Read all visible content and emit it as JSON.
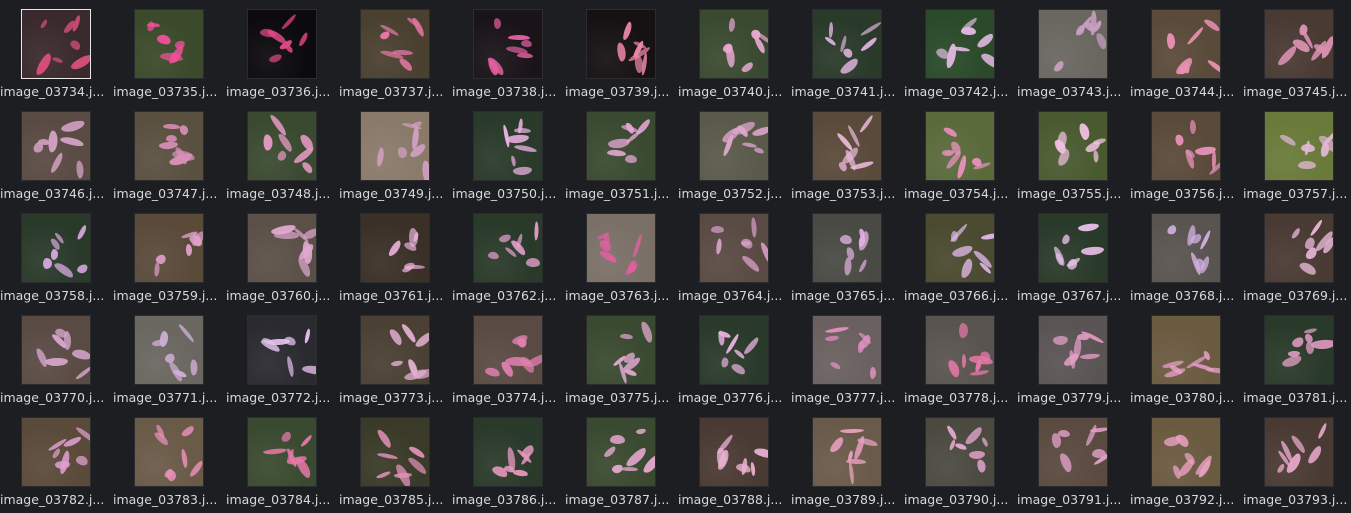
{
  "file_browser": {
    "selected_index": 0,
    "thumbnail_subject": "flower-photo",
    "colors": {
      "background": "#1c1e22",
      "label": "#d6d8dc",
      "selection_border": "#e8e8e8"
    },
    "files": [
      {
        "name": "image_03734.j...",
        "bg": "#3a2a2e",
        "petal": "#d9507a"
      },
      {
        "name": "image_03735.j...",
        "bg": "#3b4a2a",
        "petal": "#f0509a"
      },
      {
        "name": "image_03736.j...",
        "bg": "#0c0a0c",
        "petal": "#e04a8a"
      },
      {
        "name": "image_03737.j...",
        "bg": "#4a4030",
        "petal": "#e878a8"
      },
      {
        "name": "image_03738.j...",
        "bg": "#1a1418",
        "petal": "#e060a0"
      },
      {
        "name": "image_03739.j...",
        "bg": "#161214",
        "petal": "#f08aa8"
      },
      {
        "name": "image_03740.j...",
        "bg": "#3a4a30",
        "petal": "#e8a8d0"
      },
      {
        "name": "image_03741.j...",
        "bg": "#2a3a2a",
        "petal": "#d8b0d8"
      },
      {
        "name": "image_03742.j...",
        "bg": "#2a4a2a",
        "petal": "#e0b8e0"
      },
      {
        "name": "image_03743.j...",
        "bg": "#6a6660",
        "petal": "#c8a0c0"
      },
      {
        "name": "image_03744.j...",
        "bg": "#5a4a3a",
        "petal": "#e890b0"
      },
      {
        "name": "image_03745.j...",
        "bg": "#4a3a34",
        "petal": "#d890b0"
      },
      {
        "name": "image_03746.j...",
        "bg": "#5a4a44",
        "petal": "#d0a0c0"
      },
      {
        "name": "image_03747.j...",
        "bg": "#5a5040",
        "petal": "#d890b8"
      },
      {
        "name": "image_03748.j...",
        "bg": "#3a4a30",
        "petal": "#e098c0"
      },
      {
        "name": "image_03749.j...",
        "bg": "#8a7a6a",
        "petal": "#d0a0c0"
      },
      {
        "name": "image_03750.j...",
        "bg": "#2a3a2a",
        "petal": "#e8b0e0"
      },
      {
        "name": "image_03751.j...",
        "bg": "#3a4a30",
        "petal": "#e8a8d8"
      },
      {
        "name": "image_03752.j...",
        "bg": "#5a5a4a",
        "petal": "#e0a8d0"
      },
      {
        "name": "image_03753.j...",
        "bg": "#5a4a3a",
        "petal": "#e8b8d8"
      },
      {
        "name": "image_03754.j...",
        "bg": "#5a6a3a",
        "petal": "#e890c0"
      },
      {
        "name": "image_03755.j...",
        "bg": "#4a5a30",
        "petal": "#f0c0e0"
      },
      {
        "name": "image_03756.j...",
        "bg": "#5a4a3a",
        "petal": "#e890b8"
      },
      {
        "name": "image_03757.j...",
        "bg": "#6a7a3a",
        "petal": "#e0b8d8"
      },
      {
        "name": "image_03758.j...",
        "bg": "#2a3a2a",
        "petal": "#d8a8e0"
      },
      {
        "name": "image_03759.j...",
        "bg": "#5a4a3a",
        "petal": "#e0a0c8"
      },
      {
        "name": "image_03760.j...",
        "bg": "#5a5048",
        "petal": "#e0a8d0"
      },
      {
        "name": "image_03761.j...",
        "bg": "#3a3028",
        "petal": "#e8b0d8"
      },
      {
        "name": "image_03762.j...",
        "bg": "#2a3a2a",
        "petal": "#e8a0d0"
      },
      {
        "name": "image_03763.j...",
        "bg": "#7a7068",
        "petal": "#e060a0"
      },
      {
        "name": "image_03764.j...",
        "bg": "#5a4a44",
        "petal": "#d8a0c8"
      },
      {
        "name": "image_03765.j...",
        "bg": "#4a4a44",
        "petal": "#e0b0e0"
      },
      {
        "name": "image_03766.j...",
        "bg": "#4a4a30",
        "petal": "#e0b8e8"
      },
      {
        "name": "image_03767.j...",
        "bg": "#2a3a2a",
        "petal": "#e8c0e8"
      },
      {
        "name": "image_03768.j...",
        "bg": "#5a5450",
        "petal": "#d0b0e0"
      },
      {
        "name": "image_03769.j...",
        "bg": "#4a3a34",
        "petal": "#e8b8d8"
      },
      {
        "name": "image_03770.j...",
        "bg": "#5a4a44",
        "petal": "#d8a8d0"
      },
      {
        "name": "image_03771.j...",
        "bg": "#6a6660",
        "petal": "#d0b0d8"
      },
      {
        "name": "image_03772.j...",
        "bg": "#2a2a30",
        "petal": "#e0c0e8"
      },
      {
        "name": "image_03773.j...",
        "bg": "#4a4034",
        "petal": "#e0b0d0"
      },
      {
        "name": "image_03774.j...",
        "bg": "#5a4a44",
        "petal": "#e080b0"
      },
      {
        "name": "image_03775.j...",
        "bg": "#3a4a30",
        "petal": "#e0a8d0"
      },
      {
        "name": "image_03776.j...",
        "bg": "#2a3a2a",
        "petal": "#e8b0e0"
      },
      {
        "name": "image_03777.j...",
        "bg": "#6a6060",
        "petal": "#e090c0"
      },
      {
        "name": "image_03778.j...",
        "bg": "#5a5450",
        "petal": "#e878a8"
      },
      {
        "name": "image_03779.j...",
        "bg": "#5a5454",
        "petal": "#e8a0c8"
      },
      {
        "name": "image_03780.j...",
        "bg": "#6a5a40",
        "petal": "#e8a0c8"
      },
      {
        "name": "image_03781.j...",
        "bg": "#2a3a2a",
        "petal": "#e8a0c8"
      },
      {
        "name": "image_03782.j...",
        "bg": "#5a4a3a",
        "petal": "#e0a0d0"
      },
      {
        "name": "image_03783.j...",
        "bg": "#6a5a48",
        "petal": "#e890b8"
      },
      {
        "name": "image_03784.j...",
        "bg": "#3a4a30",
        "petal": "#e878a8"
      },
      {
        "name": "image_03785.j...",
        "bg": "#3a3a28",
        "petal": "#e090b8"
      },
      {
        "name": "image_03786.j...",
        "bg": "#2a3a2a",
        "petal": "#e898c0"
      },
      {
        "name": "image_03787.j...",
        "bg": "#3a4a30",
        "petal": "#e8a8d0"
      },
      {
        "name": "image_03788.j...",
        "bg": "#4a3a34",
        "petal": "#e8b0d0"
      },
      {
        "name": "image_03789.j...",
        "bg": "#6a5a4a",
        "petal": "#e8a0c0"
      },
      {
        "name": "image_03790.j...",
        "bg": "#4a4a40",
        "petal": "#e8a8d0"
      },
      {
        "name": "image_03791.j...",
        "bg": "#5a4a40",
        "petal": "#e0a0c8"
      },
      {
        "name": "image_03792.j...",
        "bg": "#6a5a40",
        "petal": "#e8a0c0"
      },
      {
        "name": "image_03793.j...",
        "bg": "#4a3a34",
        "petal": "#e8a8c8"
      }
    ]
  }
}
